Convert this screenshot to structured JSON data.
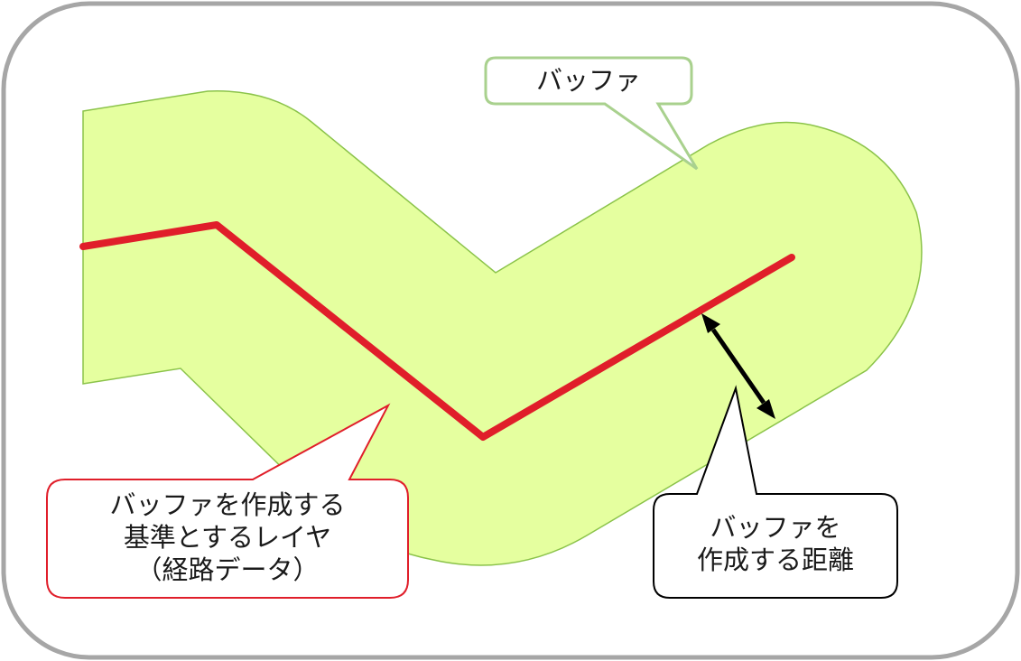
{
  "labels": {
    "buffer": "バッファ",
    "base_layer": [
      "バッファを作成する",
      "基準とするレイヤ",
      "（経路データ）"
    ],
    "distance": [
      "バッファを",
      "作成する距離"
    ]
  },
  "colors": {
    "frame": "#a6a6a6",
    "buffer_fill": "#e5ff9f",
    "buffer_stroke": "#8bc34a",
    "route_line": "#e01e2a",
    "buffer_callout_border": "#a9d18e",
    "base_callout_border": "#e01e2a",
    "distance_callout_border": "#000000",
    "arrow": "#000000"
  }
}
